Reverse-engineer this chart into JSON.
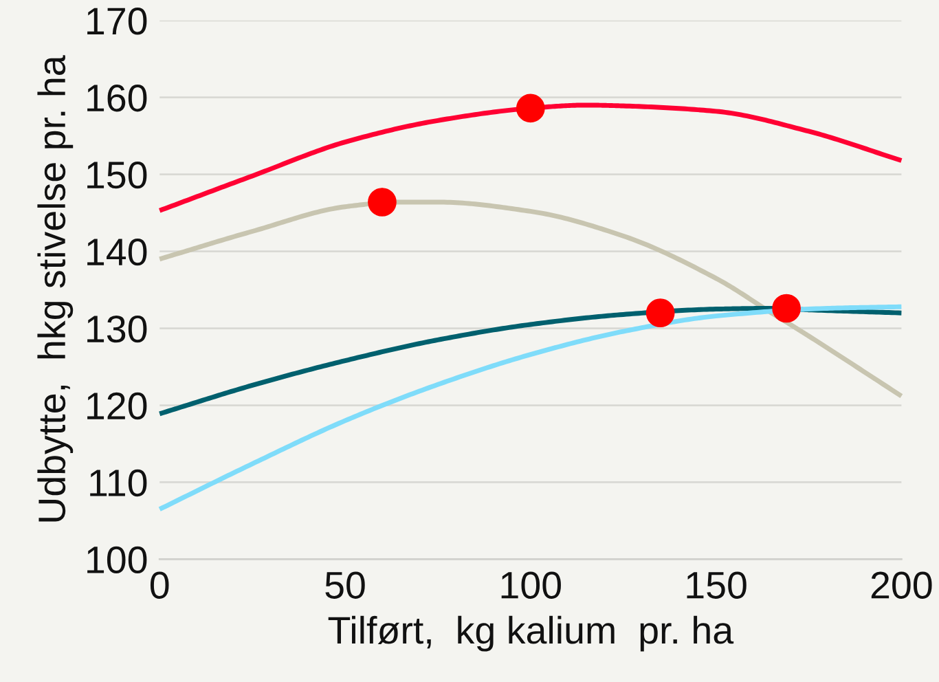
{
  "chart_data": {
    "type": "line",
    "xlabel": "Tilført,  kg kalium  pr. ha",
    "ylabel": "Udbytte,  hkg stivelse pr. ha",
    "xlim": [
      0,
      200
    ],
    "xticks": [
      0,
      50,
      100,
      150,
      200
    ],
    "ylim": [
      100,
      170
    ],
    "yticks": [
      100,
      110,
      120,
      130,
      140,
      150,
      160,
      170
    ],
    "grid": "y",
    "marker": "none",
    "line_style": "solid",
    "series": [
      {
        "color": "#ff0033",
        "x": [
          0,
          25,
          50,
          75,
          100,
          115,
          125,
          150,
          175,
          200
        ],
        "values": [
          145.3,
          149.8,
          154.2,
          157.0,
          158.6,
          159.0,
          158.9,
          158.2,
          155.6,
          151.8
        ]
      },
      {
        "color": "#c8c5b0",
        "x": [
          0,
          25,
          50,
          65,
          75,
          100,
          125,
          150,
          165,
          175,
          200
        ],
        "values": [
          139.0,
          142.6,
          145.8,
          146.4,
          146.4,
          145.2,
          142.0,
          136.5,
          132.0,
          129.0,
          121.2
        ]
      },
      {
        "color": "#00606e",
        "x": [
          0,
          25,
          50,
          75,
          100,
          125,
          150,
          165,
          175,
          200
        ],
        "values": [
          118.9,
          122.6,
          125.8,
          128.5,
          130.5,
          131.8,
          132.5,
          132.6,
          132.4,
          132.0
        ]
      },
      {
        "color": "#7fdcfa",
        "x": [
          0,
          25,
          50,
          75,
          100,
          125,
          150,
          180,
          200
        ],
        "values": [
          106.5,
          112.4,
          118.0,
          122.7,
          126.6,
          129.6,
          131.6,
          132.6,
          132.8
        ]
      },
      {
        "type": "scatter",
        "marker": "circle",
        "color": "#ff0000",
        "x": [
          100,
          60,
          135,
          169
        ],
        "values": [
          158.6,
          146.4,
          132.0,
          132.6
        ]
      }
    ]
  }
}
